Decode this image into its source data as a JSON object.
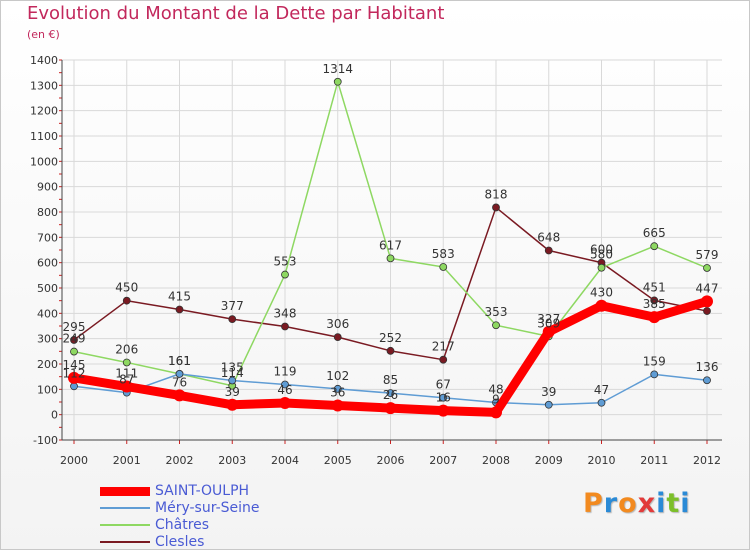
{
  "header": {
    "title": "Evolution du Montant de la Dette par Habitant",
    "subtitle": "(en €)"
  },
  "logo": {
    "text": "Proxiti",
    "colors": [
      "#f28a1f",
      "#2a8ad6",
      "#f28a1f",
      "#e23b3b",
      "#2a8ad6",
      "#7cbf2a",
      "#2a8ad6"
    ]
  },
  "chart_data": {
    "type": "line",
    "title": "Evolution du Montant de la Dette par Habitant",
    "subtitle": "(en €)",
    "x": [
      "2000",
      "2001",
      "2002",
      "2003",
      "2004",
      "2005",
      "2006",
      "2007",
      "2008",
      "2009",
      "2010",
      "2011",
      "2012"
    ],
    "ylim": [
      -100,
      1400
    ],
    "yticks": [
      -100,
      0,
      100,
      200,
      300,
      400,
      500,
      600,
      700,
      800,
      900,
      1000,
      1100,
      1200,
      1300,
      1400
    ],
    "grid": true,
    "legend_position": "bottom-left",
    "series": [
      {
        "name": "Clesles",
        "color": "#7a1a22",
        "values": [
          295,
          450,
          415,
          377,
          348,
          306,
          252,
          217,
          818,
          648,
          600,
          451,
          409
        ],
        "labels": [
          "295",
          "450",
          "415",
          "377",
          "348",
          "306",
          "252",
          "217",
          "818",
          "648",
          "600",
          "451",
          ""
        ]
      },
      {
        "name": "Châtres",
        "color": "#8ed862",
        "values": [
          249,
          206,
          161,
          114,
          553,
          1314,
          617,
          583,
          353,
          309,
          580,
          665,
          579
        ],
        "labels": [
          "249",
          "206",
          "161",
          "114",
          "553",
          "1314",
          "617",
          "583",
          "353",
          "309",
          "580",
          "665",
          "579"
        ]
      },
      {
        "name": "Méry-sur-Seine",
        "color": "#5f9cd4",
        "values": [
          112,
          87,
          161,
          135,
          119,
          102,
          85,
          67,
          48,
          39,
          47,
          159,
          136
        ],
        "labels": [
          "112",
          "87",
          "161",
          "135",
          "119",
          "102",
          "85",
          "67",
          "48",
          "39",
          "47",
          "159",
          "136"
        ]
      },
      {
        "name": "SAINT-OULPH",
        "color": "#ff0000",
        "values": [
          145,
          111,
          76,
          39,
          46,
          36,
          26,
          16,
          9,
          327,
          430,
          385,
          447
        ],
        "labels": [
          "145",
          "111",
          "76",
          "39",
          "46",
          "36",
          "26",
          "16",
          "9",
          "327",
          "430",
          "385",
          "447"
        ]
      }
    ]
  }
}
